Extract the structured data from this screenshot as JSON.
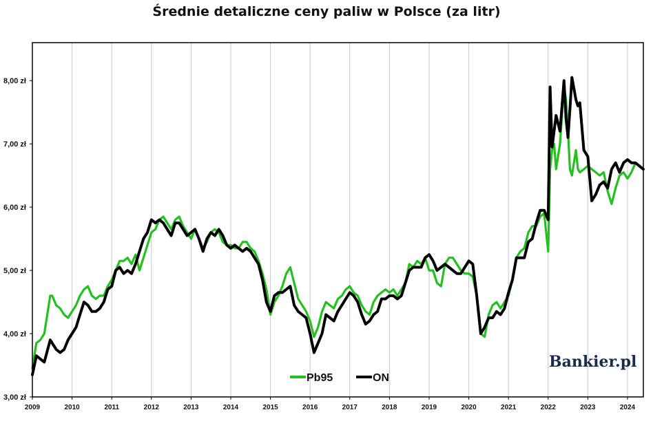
{
  "chart_data": {
    "type": "line",
    "title": "Średnie detaliczne ceny paliw w Polsce (za litr)",
    "xlabel": "",
    "ylabel": "",
    "xlim": [
      2009.0,
      2024.4
    ],
    "ylim": [
      3.0,
      8.6
    ],
    "y_ticks": [
      3,
      4,
      5,
      6,
      7,
      8
    ],
    "y_tick_labels": [
      "3,00 zł",
      "4,00 zł",
      "5,00 zł",
      "6,00 zł",
      "7,00 zł",
      "8,00 zł"
    ],
    "x_ticks": [
      2009,
      2010,
      2011,
      2012,
      2013,
      2014,
      2015,
      2016,
      2017,
      2018,
      2019,
      2020,
      2021,
      2022,
      2023,
      2024
    ],
    "x_tick_labels": [
      "2009",
      "2010",
      "2011",
      "2012",
      "2013",
      "2014",
      "2015",
      "2016",
      "2017",
      "2018",
      "2019",
      "2020",
      "2021",
      "2022",
      "2023",
      "2024"
    ],
    "grid": "vertical",
    "legend": "bottom-center",
    "series": [
      {
        "name": "Pb95",
        "color": "#22c11f",
        "x": [
          2009.0,
          2009.1,
          2009.2,
          2009.3,
          2009.45,
          2009.5,
          2009.6,
          2009.7,
          2009.8,
          2009.9,
          2010.0,
          2010.1,
          2010.2,
          2010.3,
          2010.4,
          2010.5,
          2010.6,
          2010.7,
          2010.8,
          2010.9,
          2011.0,
          2011.1,
          2011.2,
          2011.3,
          2011.4,
          2011.5,
          2011.6,
          2011.7,
          2011.8,
          2011.9,
          2012.0,
          2012.1,
          2012.2,
          2012.3,
          2012.4,
          2012.5,
          2012.6,
          2012.7,
          2012.8,
          2012.9,
          2013.0,
          2013.1,
          2013.2,
          2013.3,
          2013.4,
          2013.5,
          2013.6,
          2013.7,
          2013.8,
          2013.9,
          2014.0,
          2014.1,
          2014.2,
          2014.3,
          2014.4,
          2014.5,
          2014.6,
          2014.7,
          2014.8,
          2014.9,
          2015.0,
          2015.1,
          2015.2,
          2015.3,
          2015.4,
          2015.5,
          2015.6,
          2015.7,
          2015.8,
          2015.9,
          2016.0,
          2016.1,
          2016.2,
          2016.3,
          2016.4,
          2016.5,
          2016.6,
          2016.7,
          2016.8,
          2016.9,
          2017.0,
          2017.1,
          2017.2,
          2017.3,
          2017.4,
          2017.5,
          2017.6,
          2017.7,
          2017.8,
          2017.9,
          2018.0,
          2018.1,
          2018.2,
          2018.3,
          2018.4,
          2018.5,
          2018.6,
          2018.7,
          2018.8,
          2018.9,
          2019.0,
          2019.1,
          2019.2,
          2019.3,
          2019.4,
          2019.5,
          2019.6,
          2019.7,
          2019.8,
          2019.9,
          2020.0,
          2020.1,
          2020.2,
          2020.3,
          2020.4,
          2020.5,
          2020.6,
          2020.7,
          2020.8,
          2020.9,
          2021.0,
          2021.1,
          2021.2,
          2021.3,
          2021.4,
          2021.5,
          2021.6,
          2021.7,
          2021.8,
          2021.9,
          2022.0,
          2022.05,
          2022.1,
          2022.15,
          2022.2,
          2022.3,
          2022.4,
          2022.45,
          2022.5,
          2022.55,
          2022.6,
          2022.7,
          2022.75,
          2022.8,
          2022.9,
          2023.0,
          2023.1,
          2023.2,
          2023.3,
          2023.4,
          2023.5,
          2023.6,
          2023.7,
          2023.8,
          2023.9,
          2024.0,
          2024.1,
          2024.2,
          2024.3,
          2024.4
        ],
        "values": [
          3.45,
          3.85,
          3.9,
          4.0,
          4.6,
          4.6,
          4.45,
          4.4,
          4.3,
          4.25,
          4.35,
          4.45,
          4.6,
          4.7,
          4.75,
          4.6,
          4.55,
          4.6,
          4.6,
          4.75,
          4.85,
          5.0,
          5.15,
          5.15,
          5.2,
          5.1,
          5.25,
          5.0,
          5.2,
          5.4,
          5.6,
          5.65,
          5.8,
          5.85,
          5.75,
          5.65,
          5.8,
          5.85,
          5.7,
          5.6,
          5.5,
          5.65,
          5.5,
          5.35,
          5.45,
          5.6,
          5.65,
          5.6,
          5.45,
          5.4,
          5.4,
          5.35,
          5.35,
          5.45,
          5.45,
          5.35,
          5.3,
          5.15,
          4.95,
          4.7,
          4.3,
          4.5,
          4.6,
          4.75,
          4.95,
          5.05,
          4.8,
          4.55,
          4.45,
          4.35,
          4.2,
          3.95,
          4.1,
          4.35,
          4.5,
          4.45,
          4.4,
          4.55,
          4.6,
          4.7,
          4.75,
          4.65,
          4.6,
          4.45,
          4.35,
          4.3,
          4.5,
          4.6,
          4.65,
          4.7,
          4.65,
          4.7,
          4.6,
          4.7,
          4.8,
          5.1,
          5.05,
          5.15,
          5.1,
          5.2,
          5.0,
          5.0,
          4.8,
          4.75,
          5.1,
          5.2,
          5.2,
          5.1,
          5.0,
          4.95,
          4.95,
          4.9,
          4.6,
          4.0,
          3.95,
          4.3,
          4.45,
          4.5,
          4.4,
          4.5,
          4.6,
          4.85,
          5.2,
          5.3,
          5.35,
          5.6,
          5.7,
          5.7,
          5.85,
          5.9,
          5.3,
          6.6,
          6.9,
          7.0,
          6.6,
          7.0,
          7.9,
          7.7,
          7.2,
          6.6,
          6.5,
          6.9,
          6.6,
          6.55,
          6.6,
          6.65,
          6.6,
          6.55,
          6.5,
          6.55,
          6.25,
          6.05,
          6.3,
          6.5,
          6.55,
          6.45,
          6.55,
          6.7,
          6.65,
          6.6
        ]
      },
      {
        "name": "ON",
        "color": "#000000",
        "x": [
          2009.0,
          2009.1,
          2009.2,
          2009.3,
          2009.45,
          2009.5,
          2009.6,
          2009.7,
          2009.8,
          2009.9,
          2010.0,
          2010.1,
          2010.2,
          2010.3,
          2010.4,
          2010.5,
          2010.6,
          2010.7,
          2010.8,
          2010.9,
          2011.0,
          2011.1,
          2011.2,
          2011.3,
          2011.4,
          2011.5,
          2011.6,
          2011.7,
          2011.8,
          2011.9,
          2012.0,
          2012.1,
          2012.2,
          2012.3,
          2012.4,
          2012.5,
          2012.6,
          2012.7,
          2012.8,
          2012.9,
          2013.0,
          2013.1,
          2013.2,
          2013.3,
          2013.4,
          2013.5,
          2013.6,
          2013.7,
          2013.8,
          2013.9,
          2014.0,
          2014.1,
          2014.2,
          2014.3,
          2014.4,
          2014.5,
          2014.6,
          2014.7,
          2014.8,
          2014.9,
          2015.0,
          2015.1,
          2015.2,
          2015.3,
          2015.4,
          2015.5,
          2015.6,
          2015.7,
          2015.8,
          2015.9,
          2016.0,
          2016.1,
          2016.2,
          2016.3,
          2016.4,
          2016.5,
          2016.6,
          2016.7,
          2016.8,
          2016.9,
          2017.0,
          2017.1,
          2017.2,
          2017.3,
          2017.4,
          2017.5,
          2017.6,
          2017.7,
          2017.8,
          2017.9,
          2018.0,
          2018.1,
          2018.2,
          2018.3,
          2018.4,
          2018.5,
          2018.6,
          2018.7,
          2018.8,
          2018.9,
          2019.0,
          2019.1,
          2019.2,
          2019.3,
          2019.4,
          2019.5,
          2019.6,
          2019.7,
          2019.8,
          2019.9,
          2020.0,
          2020.1,
          2020.2,
          2020.3,
          2020.4,
          2020.5,
          2020.6,
          2020.7,
          2020.8,
          2020.9,
          2021.0,
          2021.1,
          2021.2,
          2021.3,
          2021.4,
          2021.5,
          2021.6,
          2021.7,
          2021.8,
          2021.9,
          2022.0,
          2022.05,
          2022.1,
          2022.15,
          2022.2,
          2022.3,
          2022.4,
          2022.45,
          2022.5,
          2022.55,
          2022.6,
          2022.7,
          2022.75,
          2022.8,
          2022.9,
          2023.0,
          2023.1,
          2023.2,
          2023.3,
          2023.4,
          2023.5,
          2023.6,
          2023.7,
          2023.8,
          2023.9,
          2024.0,
          2024.1,
          2024.2,
          2024.3,
          2024.4
        ],
        "values": [
          3.35,
          3.65,
          3.6,
          3.55,
          3.9,
          3.85,
          3.75,
          3.7,
          3.75,
          3.9,
          4.0,
          4.1,
          4.3,
          4.5,
          4.45,
          4.35,
          4.35,
          4.4,
          4.5,
          4.7,
          4.75,
          5.0,
          5.05,
          4.95,
          5.0,
          4.95,
          5.1,
          5.3,
          5.5,
          5.6,
          5.8,
          5.75,
          5.8,
          5.75,
          5.65,
          5.55,
          5.75,
          5.75,
          5.65,
          5.55,
          5.6,
          5.65,
          5.5,
          5.3,
          5.5,
          5.6,
          5.55,
          5.65,
          5.55,
          5.4,
          5.35,
          5.4,
          5.35,
          5.3,
          5.35,
          5.3,
          5.2,
          5.1,
          4.85,
          4.5,
          4.35,
          4.6,
          4.65,
          4.65,
          4.7,
          4.75,
          4.45,
          4.35,
          4.3,
          4.25,
          4.0,
          3.7,
          3.85,
          4.0,
          4.3,
          4.25,
          4.2,
          4.35,
          4.45,
          4.55,
          4.65,
          4.6,
          4.5,
          4.3,
          4.15,
          4.2,
          4.3,
          4.35,
          4.55,
          4.55,
          4.6,
          4.6,
          4.55,
          4.6,
          4.8,
          5.0,
          5.05,
          5.05,
          5.05,
          5.2,
          5.25,
          5.15,
          5.0,
          5.05,
          5.1,
          5.05,
          5.0,
          4.95,
          4.95,
          5.05,
          5.15,
          5.1,
          4.6,
          4.0,
          4.1,
          4.25,
          4.25,
          4.35,
          4.3,
          4.4,
          4.65,
          4.85,
          5.2,
          5.2,
          5.2,
          5.45,
          5.5,
          5.75,
          5.95,
          5.95,
          5.8,
          7.9,
          6.95,
          7.2,
          7.45,
          7.2,
          8.0,
          7.4,
          7.1,
          7.55,
          8.05,
          7.7,
          7.6,
          7.65,
          6.9,
          6.8,
          6.1,
          6.2,
          6.35,
          6.4,
          6.3,
          6.6,
          6.7,
          6.55,
          6.7,
          6.75,
          6.7,
          6.7,
          6.65,
          6.6
        ]
      }
    ],
    "legend_labels": [
      "Pb95",
      "ON"
    ],
    "logo_text": "Bankier.pl"
  }
}
